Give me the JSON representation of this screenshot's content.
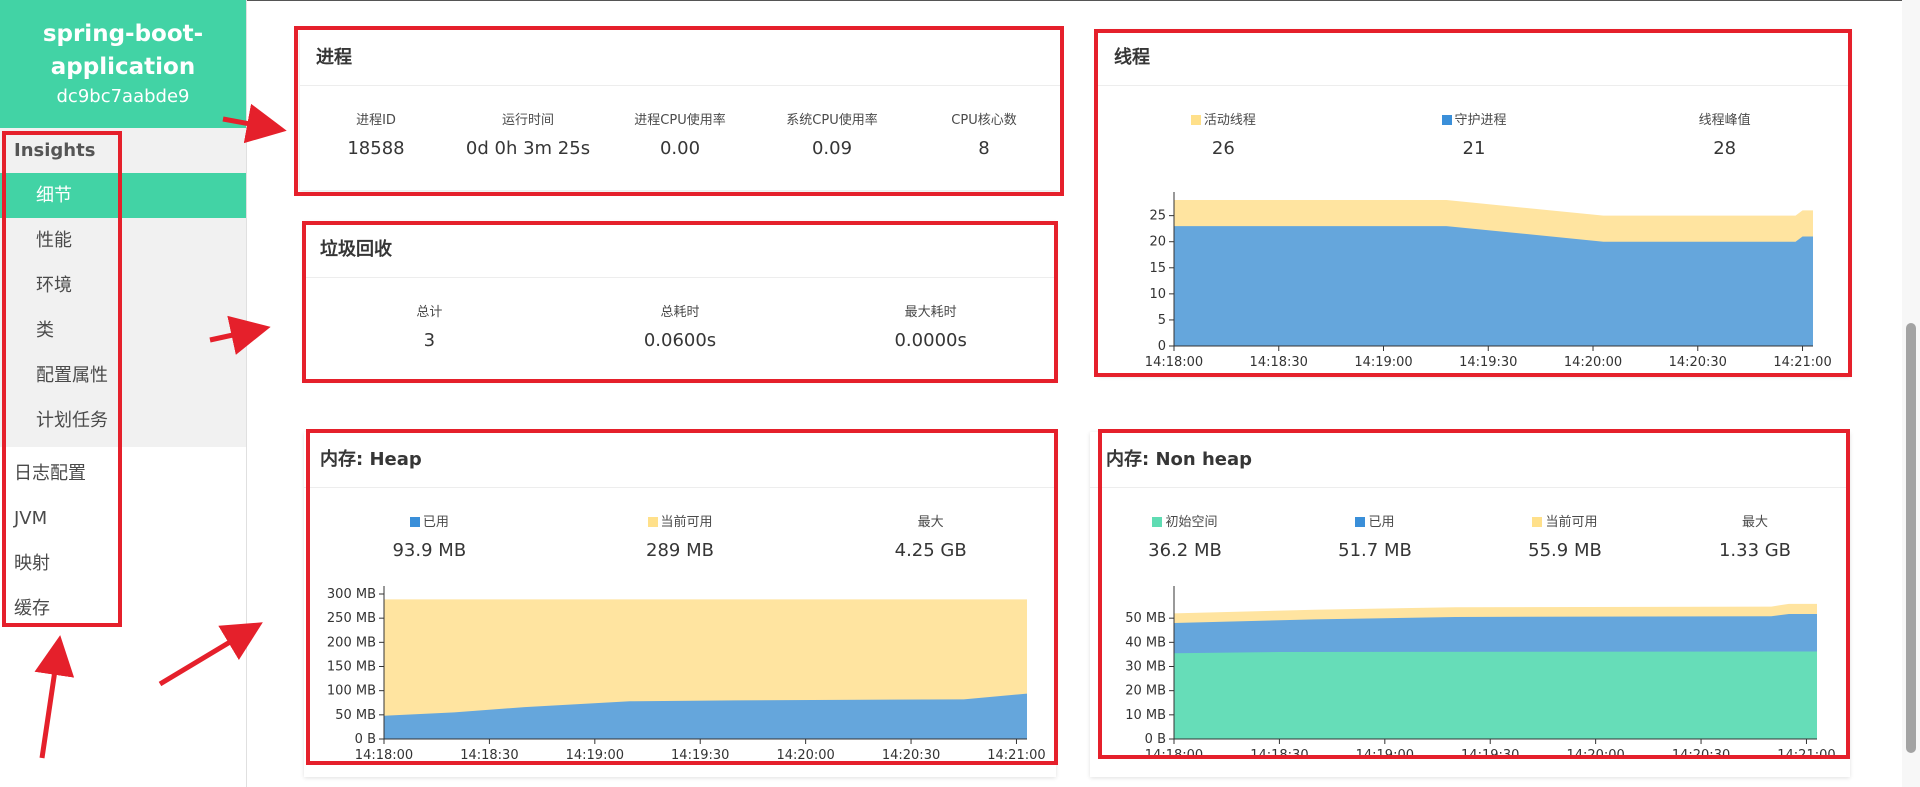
{
  "sidebar": {
    "app_name_line1": "spring-boot-",
    "app_name_line2": "application",
    "app_id": "dc9bc7aabde9",
    "insights_label": "Insights",
    "insights_items": [
      "细节",
      "性能",
      "环境",
      "类",
      "配置属性",
      "计划任务"
    ],
    "active_item": "细节",
    "other_items": [
      "日志配置",
      "JVM",
      "映射",
      "缓存"
    ]
  },
  "process": {
    "title": "进程",
    "labels": [
      "进程ID",
      "运行时间",
      "进程CPU使用率",
      "系统CPU使用率",
      "CPU核心数"
    ],
    "values": [
      "18588",
      "0d 0h 3m 25s",
      "0.00",
      "0.09",
      "8"
    ]
  },
  "gc": {
    "title": "垃圾回收",
    "labels": [
      "总计",
      "总耗时",
      "最大耗时"
    ],
    "values": [
      "3",
      "0.0600s",
      "0.0000s"
    ]
  },
  "threads": {
    "title": "线程",
    "labels": [
      "活动线程",
      "守护进程",
      "线程峰值"
    ],
    "values": [
      "26",
      "21",
      "28"
    ]
  },
  "heap": {
    "title": "内存: Heap",
    "labels": [
      "已用",
      "当前可用",
      "最大"
    ],
    "values": [
      "93.9 MB",
      "289 MB",
      "4.25 GB"
    ]
  },
  "nonheap": {
    "title": "内存: Non heap",
    "labels": [
      "初始空间",
      "已用",
      "当前可用",
      "最大"
    ],
    "values": [
      "36.2 MB",
      "51.7 MB",
      "55.9 MB",
      "1.33 GB"
    ]
  },
  "colors": {
    "accent": "#42d3a5",
    "used": "#3a8fd9",
    "available": "#ffe08a",
    "init": "#5fdcb3",
    "annotation": "#e5202b"
  },
  "chart_data": [
    {
      "type": "area",
      "name": "threads",
      "x": [
        "14:18:00",
        "14:18:30",
        "14:19:00",
        "14:19:30",
        "14:20:00",
        "14:20:30",
        "14:21:00"
      ],
      "yticks": [
        "0",
        "5",
        "10",
        "15",
        "20",
        "25"
      ],
      "ylim": [
        0,
        28
      ],
      "xlim_seconds": [
        0,
        183
      ],
      "series": [
        {
          "name": "守护进程",
          "points": [
            [
              0,
              23
            ],
            [
              78,
              23
            ],
            [
              123,
              20
            ],
            [
              178,
              20
            ],
            [
              180,
              21
            ],
            [
              183,
              21
            ]
          ]
        },
        {
          "name": "活动线程",
          "points": [
            [
              0,
              28
            ],
            [
              78,
              28
            ],
            [
              123,
              25
            ],
            [
              178,
              25
            ],
            [
              180,
              26
            ],
            [
              183,
              26
            ]
          ]
        }
      ]
    },
    {
      "type": "area",
      "name": "heap",
      "x": [
        "14:18:00",
        "14:18:30",
        "14:19:00",
        "14:19:30",
        "14:20:00",
        "14:20:30",
        "14:21:00"
      ],
      "yticks": [
        "0 B",
        "50 MB",
        "100 MB",
        "150 MB",
        "200 MB",
        "250 MB",
        "300 MB"
      ],
      "ylim": [
        0,
        300
      ],
      "xlim_seconds": [
        0,
        183
      ],
      "series": [
        {
          "name": "已用",
          "points": [
            [
              0,
              48
            ],
            [
              20,
              55
            ],
            [
              40,
              66
            ],
            [
              70,
              78
            ],
            [
              100,
              80
            ],
            [
              165,
              82
            ],
            [
              183,
              94
            ]
          ]
        },
        {
          "name": "当前可用",
          "points": [
            [
              0,
              289
            ],
            [
              183,
              289
            ]
          ]
        }
      ]
    },
    {
      "type": "area",
      "name": "nonheap",
      "x": [
        "14:18:00",
        "14:18:30",
        "14:19:00",
        "14:19:30",
        "14:20:00",
        "14:20:30",
        "14:21:00"
      ],
      "yticks": [
        "0 B",
        "10 MB",
        "20 MB",
        "30 MB",
        "40 MB",
        "50 MB"
      ],
      "ylim": [
        0,
        60
      ],
      "xlim_seconds": [
        0,
        183
      ],
      "series": [
        {
          "name": "初始空间",
          "points": [
            [
              0,
              35.5
            ],
            [
              30,
              36
            ],
            [
              183,
              36.2
            ]
          ]
        },
        {
          "name": "已用",
          "points": [
            [
              0,
              48
            ],
            [
              40,
              49.5
            ],
            [
              80,
              50.5
            ],
            [
              170,
              50.8
            ],
            [
              175,
              51.7
            ],
            [
              183,
              51.7
            ]
          ]
        },
        {
          "name": "当前可用",
          "points": [
            [
              0,
              52
            ],
            [
              40,
              53.5
            ],
            [
              80,
              54.5
            ],
            [
              170,
              54.8
            ],
            [
              175,
              55.9
            ],
            [
              183,
              55.9
            ]
          ]
        }
      ]
    }
  ]
}
